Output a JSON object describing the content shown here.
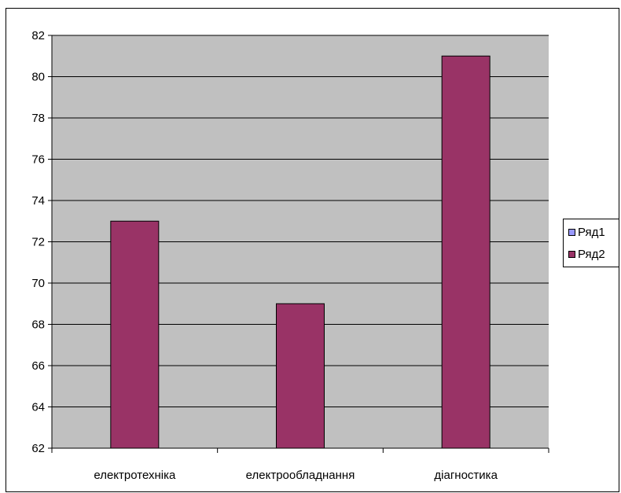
{
  "chart_data": {
    "type": "bar",
    "title": "",
    "xlabel": "",
    "ylabel": "",
    "categories": [
      "електротехніка",
      "електрообладнання",
      "діагностика"
    ],
    "series": [
      {
        "name": "Ряд1",
        "values": [
          null,
          null,
          null
        ]
      },
      {
        "name": "Ряд2",
        "values": [
          73,
          69,
          81
        ]
      }
    ],
    "ylim": [
      62,
      82
    ],
    "yticks": [
      62,
      64,
      66,
      68,
      70,
      72,
      74,
      76,
      78,
      80,
      82
    ],
    "grid": true,
    "legend_position": "right",
    "colors": {
      "plot_background": "#c0c0c0",
      "series_1": "#9999ff",
      "series_2": "#993366",
      "gridline": "#000000"
    }
  },
  "legend": {
    "items": [
      {
        "label": "Ряд1",
        "color": "#9999ff"
      },
      {
        "label": "Ряд2",
        "color": "#993366"
      }
    ]
  }
}
